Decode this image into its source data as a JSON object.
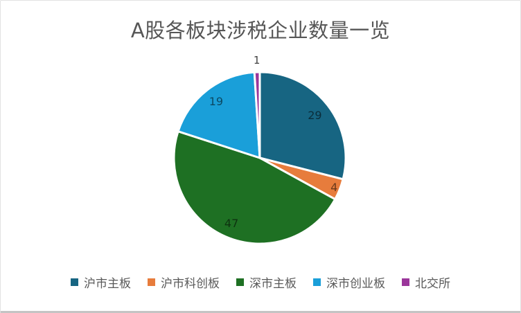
{
  "chart_data": {
    "type": "pie",
    "title": "A股各板块涉税企业数量一览",
    "total": 100,
    "start_angle_deg": 0,
    "direction": "clockwise",
    "legend_position": "bottom",
    "data_labels": "values",
    "slices": [
      {
        "label": "沪市主板",
        "value": 29,
        "color": "#176582",
        "label_pos": "inside",
        "label_r": 0.81
      },
      {
        "label": "沪市科创板",
        "value": 4,
        "color": "#E77C3C",
        "label_pos": "inside",
        "label_r": 0.93
      },
      {
        "label": "深市主板",
        "value": 47,
        "color": "#1E7023",
        "label_pos": "inside",
        "label_r": 0.83
      },
      {
        "label": "深市创业板",
        "value": 19,
        "color": "#1A9FD9",
        "label_pos": "inside",
        "label_r": 0.83
      },
      {
        "label": "北交所",
        "value": 1,
        "color": "#9B369B",
        "label_pos": "outside",
        "label_r": 1.14
      }
    ]
  }
}
